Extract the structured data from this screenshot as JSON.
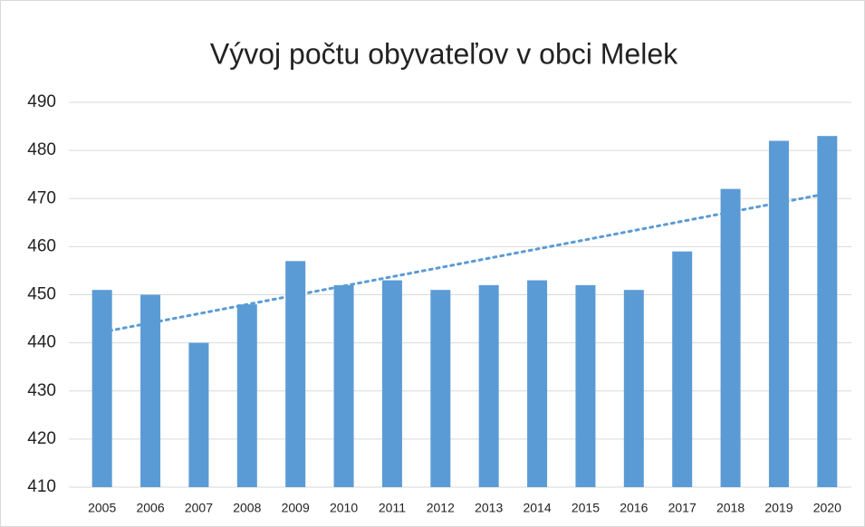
{
  "chart_data": {
    "type": "bar",
    "title": "Vývoj počtu obyvateľov v obci Melek",
    "categories": [
      "2005",
      "2006",
      "2007",
      "2008",
      "2009",
      "2010",
      "2011",
      "2012",
      "2013",
      "2014",
      "2015",
      "2016",
      "2017",
      "2018",
      "2019",
      "2020"
    ],
    "values": [
      451,
      450,
      440,
      448,
      457,
      452,
      453,
      451,
      452,
      453,
      452,
      451,
      459,
      472,
      482,
      483
    ],
    "color": "#5b9bd5",
    "trendline": "linear",
    "ylim": [
      410,
      490
    ],
    "yticks": [
      410,
      420,
      430,
      440,
      450,
      460,
      470,
      480,
      490
    ],
    "grid": true
  }
}
